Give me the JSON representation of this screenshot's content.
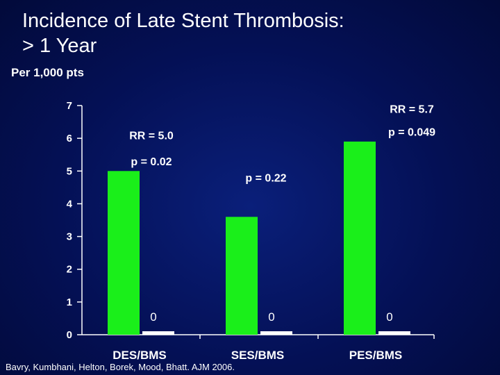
{
  "title": {
    "line1": "Incidence of Late Stent Thrombosis:",
    "line2": "> 1 Year"
  },
  "units_label": "Per 1,000 pts",
  "citation": "Bavry, Kumbhani, Helton, Borek, Mood, Bhatt. AJM 2006.",
  "colors": {
    "bar_green": "#1aef1a",
    "bar_white": "#ffffff",
    "axis": "#ffffff"
  },
  "chart_data": {
    "type": "bar",
    "title": "Incidence of Late Stent Thrombosis: > 1 Year",
    "ylabel": "Per 1,000 pts",
    "xlabel": "",
    "ylim": [
      0,
      7
    ],
    "yticks": [
      0,
      1,
      2,
      3,
      4,
      5,
      6,
      7
    ],
    "grid": false,
    "categories": [
      "DES/BMS",
      "SES/BMS",
      "PES/BMS"
    ],
    "series": [
      {
        "values": [
          5.0,
          3.6,
          5.9
        ]
      },
      {
        "values": [
          0,
          0,
          0
        ]
      }
    ],
    "zero_labels": [
      "0",
      "0",
      "0"
    ],
    "annotations": [
      {
        "text": "RR = 5.0",
        "category": "DES/BMS",
        "y": 6.1
      },
      {
        "text": "p = 0.02",
        "category": "DES/BMS",
        "y": 5.3
      },
      {
        "text": "p = 0.22",
        "category": "SES/BMS",
        "y": 4.8
      },
      {
        "text": "RR = 5.7",
        "category": "PES/BMS",
        "y": 6.9
      },
      {
        "text": "p = 0.049",
        "category": "PES/BMS",
        "y": 6.2
      }
    ]
  }
}
